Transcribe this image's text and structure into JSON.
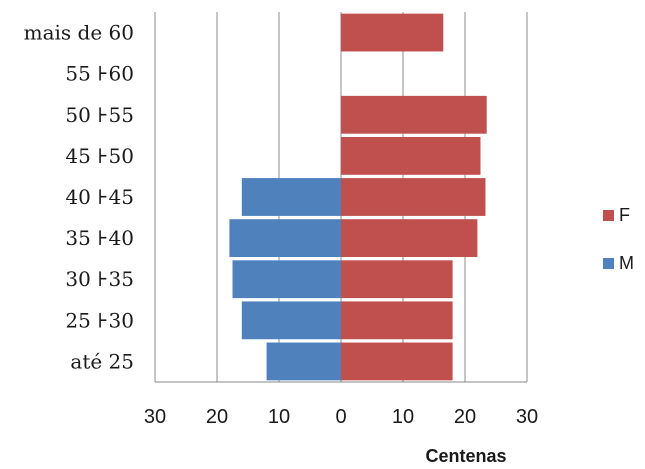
{
  "chart_data": {
    "type": "bar",
    "orientation": "horizontal",
    "layout": "population-pyramid",
    "categories": [
      "até 25",
      "25 ⊦30",
      "30 ⊦35",
      "35 ⊦40",
      "40 ⊦45",
      "45 ⊦50",
      "50 ⊦55",
      "55 ⊦60",
      "mais de 60"
    ],
    "series": [
      {
        "name": "F",
        "color": "#C0504D",
        "values": [
          18,
          18,
          18,
          22,
          23.3,
          22.5,
          23.5,
          0,
          16.5
        ]
      },
      {
        "name": "M",
        "color": "#4F81BD",
        "values": [
          12,
          16,
          17.5,
          18,
          16,
          0,
          0,
          0,
          0
        ]
      }
    ],
    "xlim": [
      -30,
      30
    ],
    "xticks": [
      -30,
      -20,
      -10,
      0,
      10,
      20,
      30
    ],
    "xtick_labels": [
      "30",
      "20",
      "10",
      "0",
      "10",
      "20",
      "30"
    ],
    "xlabel": "Centenas",
    "ylabel": "",
    "title": "",
    "grid": "vertical",
    "legend": "right"
  }
}
